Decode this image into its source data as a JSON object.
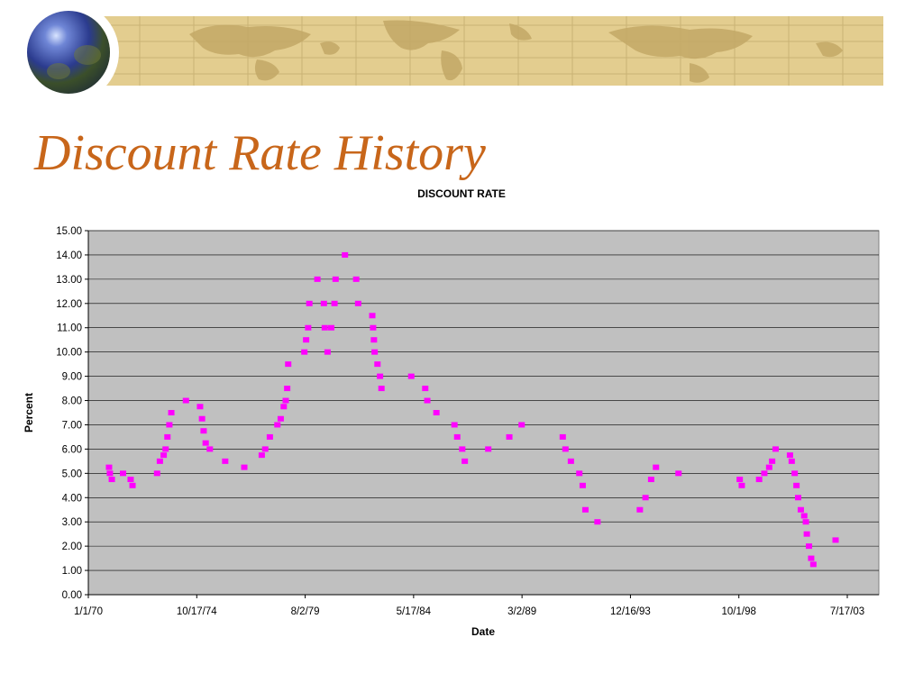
{
  "slide": {
    "title": "Discount Rate History"
  },
  "colors": {
    "title": "#c8661a",
    "banner": "#e3cd8f",
    "plot_background": "#c0c0c0",
    "marker": "#ff00ff",
    "gridline": "#000000"
  },
  "chart_data": {
    "type": "scatter",
    "title": "DISCOUNT RATE",
    "xlabel": "Date",
    "ylabel": "Percent",
    "ylim": [
      0,
      15
    ],
    "xlim": [
      "1/1/70",
      "7/17/03"
    ],
    "yticks": [
      "0.00",
      "1.00",
      "2.00",
      "3.00",
      "4.00",
      "5.00",
      "6.00",
      "7.00",
      "8.00",
      "9.00",
      "10.00",
      "11.00",
      "12.00",
      "13.00",
      "14.00",
      "15.00"
    ],
    "xticks": [
      "1/1/70",
      "10/17/74",
      "8/2/79",
      "5/17/84",
      "3/2/89",
      "12/16/93",
      "10/1/98",
      "7/17/03"
    ],
    "grid": "horizontal",
    "legend": "none",
    "points": [
      [
        "1970-12-01",
        5.25
      ],
      [
        "1970-12-15",
        5.0
      ],
      [
        "1971-01-15",
        4.75
      ],
      [
        "1971-07-15",
        5.0
      ],
      [
        "1971-11-15",
        4.75
      ],
      [
        "1971-12-15",
        4.5
      ],
      [
        "1973-01-15",
        5.0
      ],
      [
        "1973-03-01",
        5.5
      ],
      [
        "1973-05-01",
        5.75
      ],
      [
        "1973-06-01",
        6.0
      ],
      [
        "1973-07-01",
        6.5
      ],
      [
        "1973-08-01",
        7.0
      ],
      [
        "1973-09-01",
        7.5
      ],
      [
        "1974-04-25",
        8.0
      ],
      [
        "1974-12-09",
        7.75
      ],
      [
        "1975-01-10",
        7.25
      ],
      [
        "1975-02-05",
        6.75
      ],
      [
        "1975-03-10",
        6.25
      ],
      [
        "1975-05-16",
        6.0
      ],
      [
        "1976-01-19",
        5.5
      ],
      [
        "1976-11-22",
        5.25
      ],
      [
        "1977-08-31",
        5.75
      ],
      [
        "1977-10-26",
        6.0
      ],
      [
        "1978-01-09",
        6.5
      ],
      [
        "1978-05-11",
        7.0
      ],
      [
        "1978-07-03",
        7.25
      ],
      [
        "1978-08-21",
        7.75
      ],
      [
        "1978-09-22",
        8.0
      ],
      [
        "1978-10-16",
        8.5
      ],
      [
        "1978-11-01",
        9.5
      ],
      [
        "1979-07-20",
        10.0
      ],
      [
        "1979-08-17",
        10.5
      ],
      [
        "1979-09-19",
        11.0
      ],
      [
        "1979-10-08",
        12.0
      ],
      [
        "1980-02-15",
        13.0
      ],
      [
        "1980-05-30",
        12.0
      ],
      [
        "1980-06-13",
        11.0
      ],
      [
        "1980-07-28",
        10.0
      ],
      [
        "1980-09-26",
        11.0
      ],
      [
        "1980-11-17",
        12.0
      ],
      [
        "1980-12-05",
        13.0
      ],
      [
        "1981-05-05",
        14.0
      ],
      [
        "1981-11-02",
        13.0
      ],
      [
        "1981-12-04",
        12.0
      ],
      [
        "1982-07-20",
        11.5
      ],
      [
        "1982-08-02",
        11.0
      ],
      [
        "1982-08-16",
        10.5
      ],
      [
        "1982-08-27",
        10.0
      ],
      [
        "1982-10-12",
        9.5
      ],
      [
        "1982-11-22",
        9.0
      ],
      [
        "1982-12-15",
        8.5
      ],
      [
        "1984-04-09",
        9.0
      ],
      [
        "1984-11-21",
        8.5
      ],
      [
        "1984-12-24",
        8.0
      ],
      [
        "1985-05-20",
        7.5
      ],
      [
        "1986-03-07",
        7.0
      ],
      [
        "1986-04-21",
        6.5
      ],
      [
        "1986-07-11",
        6.0
      ],
      [
        "1986-08-21",
        5.5
      ],
      [
        "1987-09-04",
        6.0
      ],
      [
        "1988-08-09",
        6.5
      ],
      [
        "1989-02-24",
        7.0
      ],
      [
        "1990-12-19",
        6.5
      ],
      [
        "1991-02-01",
        6.0
      ],
      [
        "1991-04-30",
        5.5
      ],
      [
        "1991-09-13",
        5.0
      ],
      [
        "1991-11-06",
        4.5
      ],
      [
        "1991-12-20",
        3.5
      ],
      [
        "1992-07-02",
        3.0
      ],
      [
        "1994-05-17",
        3.5
      ],
      [
        "1994-08-16",
        4.0
      ],
      [
        "1994-11-15",
        4.75
      ],
      [
        "1995-02-01",
        5.25
      ],
      [
        "1996-01-31",
        5.0
      ],
      [
        "1998-10-15",
        4.75
      ],
      [
        "1998-11-17",
        4.5
      ],
      [
        "1999-08-24",
        4.75
      ],
      [
        "1999-11-16",
        5.0
      ],
      [
        "2000-02-02",
        5.25
      ],
      [
        "2000-03-21",
        5.5
      ],
      [
        "2000-05-16",
        6.0
      ],
      [
        "2001-01-03",
        5.75
      ],
      [
        "2001-01-31",
        5.5
      ],
      [
        "2001-03-20",
        5.0
      ],
      [
        "2001-04-18",
        4.5
      ],
      [
        "2001-05-15",
        4.0
      ],
      [
        "2001-06-27",
        3.5
      ],
      [
        "2001-08-21",
        3.25
      ],
      [
        "2001-09-17",
        3.0
      ],
      [
        "2001-10-02",
        2.5
      ],
      [
        "2001-11-06",
        2.0
      ],
      [
        "2001-12-11",
        1.5
      ],
      [
        "2002-01-15",
        1.25
      ],
      [
        "2003-01-09",
        2.25
      ]
    ]
  }
}
